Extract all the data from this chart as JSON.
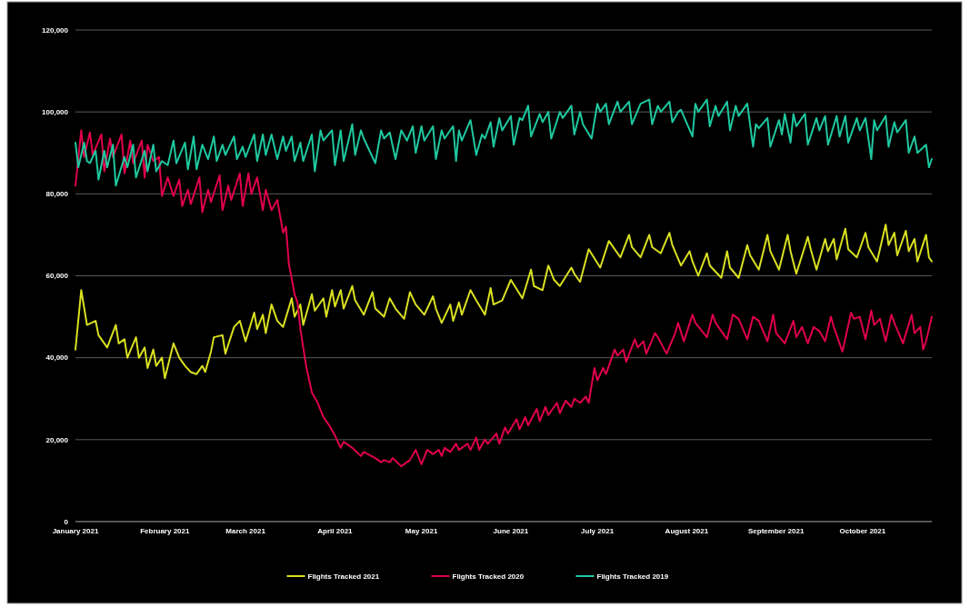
{
  "chart_data": {
    "type": "line",
    "xlim": [
      "2021-01-01",
      "2021-10-25"
    ],
    "ylim": [
      0,
      120000
    ],
    "xticks": [
      {
        "value": "2021-01-01",
        "label": "January 2021"
      },
      {
        "value": "2021-02-01",
        "label": "February 2021"
      },
      {
        "value": "2021-03-01",
        "label": "March 2021"
      },
      {
        "value": "2021-04-01",
        "label": "April 2021"
      },
      {
        "value": "2021-05-01",
        "label": "May 2021"
      },
      {
        "value": "2021-06-01",
        "label": "June 2021"
      },
      {
        "value": "2021-07-01",
        "label": "July 2021"
      },
      {
        "value": "2021-08-01",
        "label": "August 2021"
      },
      {
        "value": "2021-09-01",
        "label": "September 2021"
      },
      {
        "value": "2021-10-01",
        "label": "October 2021"
      }
    ],
    "yticks": [
      {
        "value": 0,
        "label": "0"
      },
      {
        "value": 20000,
        "label": "20,000"
      },
      {
        "value": 40000,
        "label": "40,000"
      },
      {
        "value": 60000,
        "label": "60,000"
      },
      {
        "value": 80000,
        "label": "80,000"
      },
      {
        "value": 100000,
        "label": "100,000"
      },
      {
        "value": 120000,
        "label": "120,000"
      }
    ],
    "grid": "y",
    "legend": "bottom",
    "line_style": "solid",
    "series": [
      {
        "name": "Flights Tracked 2021",
        "color": "#d9e021",
        "x": [
          "2021-01-01",
          "2021-01-03",
          "2021-01-05",
          "2021-01-08",
          "2021-01-09",
          "2021-01-12",
          "2021-01-15",
          "2021-01-16",
          "2021-01-18",
          "2021-01-19",
          "2021-01-22",
          "2021-01-23",
          "2021-01-25",
          "2021-01-26",
          "2021-01-28",
          "2021-01-29",
          "2021-01-31",
          "2021-02-01",
          "2021-02-04",
          "2021-02-06",
          "2021-02-08",
          "2021-02-10",
          "2021-02-12",
          "2021-02-14",
          "2021-02-15",
          "2021-02-17",
          "2021-02-18",
          "2021-02-21",
          "2021-02-22",
          "2021-02-25",
          "2021-02-27",
          "2021-03-01",
          "2021-03-04",
          "2021-03-05",
          "2021-03-07",
          "2021-03-08",
          "2021-03-10",
          "2021-03-12",
          "2021-03-14",
          "2021-03-17",
          "2021-03-18",
          "2021-03-20",
          "2021-03-21",
          "2021-03-24",
          "2021-03-25",
          "2021-03-28",
          "2021-03-29",
          "2021-03-31",
          "2021-04-01",
          "2021-04-03",
          "2021-04-04",
          "2021-04-07",
          "2021-04-08",
          "2021-04-11",
          "2021-04-14",
          "2021-04-15",
          "2021-04-18",
          "2021-04-20",
          "2021-04-22",
          "2021-04-25",
          "2021-04-27",
          "2021-04-29",
          "2021-05-02",
          "2021-05-05",
          "2021-05-06",
          "2021-05-08",
          "2021-05-11",
          "2021-05-12",
          "2021-05-14",
          "2021-05-15",
          "2021-05-18",
          "2021-05-20",
          "2021-05-23",
          "2021-05-25",
          "2021-05-26",
          "2021-05-29",
          "2021-06-01",
          "2021-06-05",
          "2021-06-08",
          "2021-06-09",
          "2021-06-12",
          "2021-06-14",
          "2021-06-16",
          "2021-06-18",
          "2021-06-22",
          "2021-06-23",
          "2021-06-25",
          "2021-06-28",
          "2021-07-02",
          "2021-07-05",
          "2021-07-09",
          "2021-07-12",
          "2021-07-13",
          "2021-07-16",
          "2021-07-19",
          "2021-07-20",
          "2021-07-23",
          "2021-07-26",
          "2021-07-27",
          "2021-07-30",
          "2021-08-02",
          "2021-08-03",
          "2021-08-05",
          "2021-08-08",
          "2021-08-09",
          "2021-08-13",
          "2021-08-15",
          "2021-08-16",
          "2021-08-19",
          "2021-08-22",
          "2021-08-23",
          "2021-08-26",
          "2021-08-29",
          "2021-08-30",
          "2021-09-02",
          "2021-09-05",
          "2021-09-06",
          "2021-09-08",
          "2021-09-12",
          "2021-09-13",
          "2021-09-15",
          "2021-09-18",
          "2021-09-19",
          "2021-09-21",
          "2021-09-22",
          "2021-09-25",
          "2021-09-26",
          "2021-09-29",
          "2021-10-02",
          "2021-10-03",
          "2021-10-06",
          "2021-10-09",
          "2021-10-10",
          "2021-10-12",
          "2021-10-13",
          "2021-10-16",
          "2021-10-17",
          "2021-10-19",
          "2021-10-20",
          "2021-10-23",
          "2021-10-24",
          "2021-10-25"
        ],
        "values": [
          42000,
          56500,
          48000,
          49000,
          45500,
          42500,
          48000,
          43500,
          44500,
          40000,
          45000,
          40000,
          42500,
          37500,
          42000,
          38000,
          40000,
          35000,
          43500,
          40000,
          38000,
          36500,
          36000,
          38000,
          36500,
          41500,
          45000,
          45500,
          41000,
          47500,
          49000,
          44000,
          51000,
          47000,
          50500,
          46000,
          53000,
          49000,
          47500,
          54500,
          50000,
          53000,
          48000,
          55500,
          51500,
          54500,
          50000,
          56500,
          52500,
          56500,
          52000,
          57500,
          54000,
          50500,
          56000,
          52000,
          50000,
          54500,
          52000,
          49500,
          56000,
          53000,
          50500,
          55000,
          52000,
          48500,
          53000,
          49000,
          53500,
          50500,
          56500,
          54000,
          50500,
          57000,
          53000,
          54000,
          59000,
          54500,
          61500,
          57500,
          56500,
          62500,
          59000,
          57500,
          62000,
          60500,
          58500,
          66500,
          62000,
          68500,
          64500,
          70000,
          67000,
          64500,
          70000,
          67000,
          65500,
          70500,
          67500,
          62500,
          66000,
          63500,
          60000,
          65500,
          62500,
          59500,
          66000,
          62000,
          59500,
          67500,
          65000,
          61500,
          70000,
          66000,
          61500,
          70000,
          66000,
          60500,
          69500,
          66500,
          61500,
          69000,
          66000,
          69000,
          64000,
          71500,
          66500,
          64500,
          70500,
          67000,
          63500,
          72500,
          67500,
          70500,
          65000,
          71000,
          66000,
          69000,
          63500,
          70000,
          64500,
          63500
        ]
      },
      {
        "name": "Flights Tracked 2020",
        "color": "#e0004d",
        "x": [
          "2021-01-01",
          "2021-01-03",
          "2021-01-04",
          "2021-01-06",
          "2021-01-07",
          "2021-01-10",
          "2021-01-11",
          "2021-01-13",
          "2021-01-14",
          "2021-01-17",
          "2021-01-18",
          "2021-01-20",
          "2021-01-21",
          "2021-01-24",
          "2021-01-25",
          "2021-01-26",
          "2021-01-28",
          "2021-01-30",
          "2021-01-31",
          "2021-02-02",
          "2021-02-04",
          "2021-02-06",
          "2021-02-07",
          "2021-02-09",
          "2021-02-10",
          "2021-02-13",
          "2021-02-14",
          "2021-02-16",
          "2021-02-17",
          "2021-02-20",
          "2021-02-21",
          "2021-02-23",
          "2021-02-24",
          "2021-02-27",
          "2021-02-28",
          "2021-03-02",
          "2021-03-03",
          "2021-03-05",
          "2021-03-07",
          "2021-03-08",
          "2021-03-10",
          "2021-03-12",
          "2021-03-14",
          "2021-03-15",
          "2021-03-16",
          "2021-03-18",
          "2021-03-19",
          "2021-03-20",
          "2021-03-22",
          "2021-03-24",
          "2021-03-26",
          "2021-03-28",
          "2021-03-30",
          "2021-04-01",
          "2021-04-03",
          "2021-04-04",
          "2021-04-07",
          "2021-04-10",
          "2021-04-11",
          "2021-04-15",
          "2021-04-17",
          "2021-04-18",
          "2021-04-20",
          "2021-04-21",
          "2021-04-24",
          "2021-04-27",
          "2021-04-29",
          "2021-05-01",
          "2021-05-03",
          "2021-05-05",
          "2021-05-07",
          "2021-05-08",
          "2021-05-09",
          "2021-05-11",
          "2021-05-13",
          "2021-05-14",
          "2021-05-17",
          "2021-05-18",
          "2021-05-20",
          "2021-05-21",
          "2021-05-23",
          "2021-05-24",
          "2021-05-27",
          "2021-05-28",
          "2021-05-30",
          "2021-05-31",
          "2021-06-03",
          "2021-06-04",
          "2021-06-06",
          "2021-06-07",
          "2021-06-10",
          "2021-06-11",
          "2021-06-13",
          "2021-06-14",
          "2021-06-17",
          "2021-06-18",
          "2021-06-20",
          "2021-06-22",
          "2021-06-23",
          "2021-06-25",
          "2021-06-27",
          "2021-06-28",
          "2021-06-30",
          "2021-07-01",
          "2021-07-03",
          "2021-07-04",
          "2021-07-07",
          "2021-07-08",
          "2021-07-10",
          "2021-07-11",
          "2021-07-14",
          "2021-07-15",
          "2021-07-17",
          "2021-07-18",
          "2021-07-21",
          "2021-07-22",
          "2021-07-25",
          "2021-07-28",
          "2021-07-29",
          "2021-07-31",
          "2021-08-03",
          "2021-08-04",
          "2021-08-08",
          "2021-08-10",
          "2021-08-11",
          "2021-08-15",
          "2021-08-17",
          "2021-08-19",
          "2021-08-22",
          "2021-08-24",
          "2021-08-26",
          "2021-08-29",
          "2021-08-31",
          "2021-09-01",
          "2021-09-04",
          "2021-09-07",
          "2021-09-08",
          "2021-09-10",
          "2021-09-12",
          "2021-09-14",
          "2021-09-16",
          "2021-09-18",
          "2021-09-20",
          "2021-09-21",
          "2021-09-24",
          "2021-09-27",
          "2021-09-28",
          "2021-09-30",
          "2021-10-02",
          "2021-10-04",
          "2021-10-05",
          "2021-10-07",
          "2021-10-09",
          "2021-10-11",
          "2021-10-12",
          "2021-10-15",
          "2021-10-18",
          "2021-10-19",
          "2021-10-21",
          "2021-10-22",
          "2021-10-23",
          "2021-10-25"
        ],
        "values": [
          82000,
          95500,
          89000,
          95000,
          89500,
          94500,
          85500,
          93500,
          89000,
          94500,
          85000,
          93000,
          87500,
          93000,
          84000,
          92000,
          88000,
          89000,
          79500,
          84000,
          79500,
          83500,
          77000,
          81000,
          77500,
          84000,
          75500,
          81000,
          78000,
          84500,
          76000,
          82000,
          78500,
          85000,
          77000,
          85000,
          80000,
          84000,
          76000,
          81000,
          76000,
          78500,
          70500,
          72000,
          63000,
          55500,
          53500,
          47000,
          38000,
          31500,
          29000,
          25500,
          23500,
          21000,
          18000,
          19500,
          18000,
          16000,
          17000,
          15500,
          14500,
          15000,
          14500,
          15500,
          13500,
          15000,
          17500,
          14000,
          17500,
          16500,
          17500,
          16000,
          18000,
          17000,
          19000,
          17500,
          19000,
          17500,
          20500,
          17500,
          20000,
          19000,
          21500,
          19000,
          23000,
          21500,
          25000,
          22500,
          25500,
          23500,
          27500,
          24500,
          28000,
          26000,
          29000,
          26500,
          29500,
          28000,
          30000,
          29000,
          30500,
          29000,
          37500,
          34500,
          37500,
          36000,
          42000,
          40500,
          42000,
          39000,
          44500,
          42500,
          44000,
          41000,
          46000,
          45000,
          41000,
          46000,
          48500,
          44000,
          50500,
          48500,
          45000,
          50500,
          48500,
          44500,
          50500,
          49500,
          44500,
          50000,
          49000,
          44000,
          50500,
          46000,
          43500,
          49000,
          45000,
          47500,
          43500,
          47500,
          46500,
          44000,
          50000,
          47500,
          41500,
          51000,
          49500,
          50000,
          44500,
          51500,
          48000,
          49500,
          44000,
          50500,
          48500,
          43500,
          50500,
          46000,
          47500,
          42000,
          44000,
          50000
        ]
      },
      {
        "name": "Flights Tracked 2019",
        "color": "#1fc8a0",
        "x": [
          "2021-01-01",
          "2021-01-02",
          "2021-01-04",
          "2021-01-05",
          "2021-01-06",
          "2021-01-08",
          "2021-01-09",
          "2021-01-11",
          "2021-01-12",
          "2021-01-14",
          "2021-01-15",
          "2021-01-18",
          "2021-01-19",
          "2021-01-21",
          "2021-01-22",
          "2021-01-25",
          "2021-01-26",
          "2021-01-28",
          "2021-01-29",
          "2021-01-31",
          "2021-02-02",
          "2021-02-04",
          "2021-02-05",
          "2021-02-08",
          "2021-02-09",
          "2021-02-11",
          "2021-02-12",
          "2021-02-14",
          "2021-02-16",
          "2021-02-18",
          "2021-02-19",
          "2021-02-21",
          "2021-02-22",
          "2021-02-25",
          "2021-02-26",
          "2021-02-28",
          "2021-03-01",
          "2021-03-04",
          "2021-03-05",
          "2021-03-07",
          "2021-03-08",
          "2021-03-10",
          "2021-03-12",
          "2021-03-14",
          "2021-03-15",
          "2021-03-17",
          "2021-03-18",
          "2021-03-20",
          "2021-03-21",
          "2021-03-24",
          "2021-03-25",
          "2021-03-27",
          "2021-03-28",
          "2021-03-31",
          "2021-04-01",
          "2021-04-03",
          "2021-04-04",
          "2021-04-07",
          "2021-04-08",
          "2021-04-10",
          "2021-04-11",
          "2021-04-15",
          "2021-04-17",
          "2021-04-18",
          "2021-04-20",
          "2021-04-22",
          "2021-04-24",
          "2021-04-26",
          "2021-04-28",
          "2021-04-29",
          "2021-05-01",
          "2021-05-02",
          "2021-05-05",
          "2021-05-06",
          "2021-05-08",
          "2021-05-09",
          "2021-05-12",
          "2021-05-13",
          "2021-05-14",
          "2021-05-15",
          "2021-05-18",
          "2021-05-20",
          "2021-05-22",
          "2021-05-23",
          "2021-05-25",
          "2021-05-26",
          "2021-05-28",
          "2021-05-29",
          "2021-06-01",
          "2021-06-02",
          "2021-06-04",
          "2021-06-05",
          "2021-06-07",
          "2021-06-08",
          "2021-06-11",
          "2021-06-12",
          "2021-06-14",
          "2021-06-15",
          "2021-06-18",
          "2021-06-19",
          "2021-06-22",
          "2021-06-23",
          "2021-06-25",
          "2021-06-26",
          "2021-06-29",
          "2021-07-01",
          "2021-07-02",
          "2021-07-04",
          "2021-07-05",
          "2021-07-08",
          "2021-07-09",
          "2021-07-12",
          "2021-07-13",
          "2021-07-16",
          "2021-07-19",
          "2021-07-20",
          "2021-07-22",
          "2021-07-23",
          "2021-07-26",
          "2021-07-27",
          "2021-07-29",
          "2021-07-30",
          "2021-08-03",
          "2021-08-04",
          "2021-08-05",
          "2021-08-08",
          "2021-08-09",
          "2021-08-11",
          "2021-08-12",
          "2021-08-15",
          "2021-08-16",
          "2021-08-18",
          "2021-08-19",
          "2021-08-22",
          "2021-08-24",
          "2021-08-25",
          "2021-08-26",
          "2021-08-29",
          "2021-08-30",
          "2021-09-02",
          "2021-09-03",
          "2021-09-04",
          "2021-09-06",
          "2021-09-07",
          "2021-09-08",
          "2021-09-11",
          "2021-09-12",
          "2021-09-15",
          "2021-09-16",
          "2021-09-18",
          "2021-09-19",
          "2021-09-22",
          "2021-09-23",
          "2021-09-25",
          "2021-09-26",
          "2021-09-29",
          "2021-09-30",
          "2021-10-02",
          "2021-10-04",
          "2021-10-05",
          "2021-10-06",
          "2021-10-09",
          "2021-10-10",
          "2021-10-12",
          "2021-10-13",
          "2021-10-16",
          "2021-10-17",
          "2021-10-19",
          "2021-10-20",
          "2021-10-23",
          "2021-10-24",
          "2021-10-25"
        ],
        "values": [
          92500,
          86500,
          92500,
          88000,
          87500,
          90500,
          83500,
          90500,
          86500,
          92000,
          82000,
          89000,
          86500,
          92000,
          84000,
          90500,
          85500,
          92000,
          85500,
          88000,
          87000,
          93000,
          87500,
          92500,
          86000,
          94000,
          86000,
          92000,
          88500,
          94000,
          88000,
          92000,
          89500,
          94000,
          88500,
          91500,
          89000,
          94500,
          88000,
          94500,
          89500,
          94500,
          88500,
          94000,
          90500,
          94000,
          88000,
          92500,
          88000,
          94500,
          85500,
          95500,
          93000,
          95500,
          87000,
          95500,
          88000,
          97000,
          89500,
          95500,
          93500,
          87500,
          95500,
          93500,
          95000,
          88500,
          95500,
          93000,
          96500,
          90000,
          96500,
          93000,
          96500,
          88500,
          95500,
          93500,
          96500,
          88000,
          95500,
          93000,
          98000,
          89500,
          94500,
          93500,
          97500,
          91500,
          98500,
          95500,
          99000,
          92000,
          98500,
          98000,
          101500,
          94000,
          99500,
          97500,
          100000,
          93500,
          100000,
          98500,
          101500,
          94500,
          100000,
          97000,
          93500,
          102000,
          100000,
          102000,
          97000,
          102500,
          100000,
          102500,
          97000,
          102000,
          103000,
          97000,
          101500,
          100000,
          102500,
          97500,
          100000,
          100500,
          94000,
          102000,
          100000,
          103000,
          96500,
          101500,
          99000,
          102500,
          95500,
          101500,
          99000,
          102000,
          91500,
          97000,
          96000,
          98500,
          91500,
          98000,
          94500,
          99500,
          92500,
          99500,
          96500,
          99500,
          92000,
          98500,
          95500,
          99000,
          92000,
          99000,
          94000,
          99000,
          92500,
          98500,
          95500,
          98500,
          88500,
          98000,
          95500,
          99000,
          91500,
          97500,
          95000,
          98000,
          90000,
          94000,
          90000,
          92000,
          86500,
          88500
        ]
      }
    ]
  }
}
